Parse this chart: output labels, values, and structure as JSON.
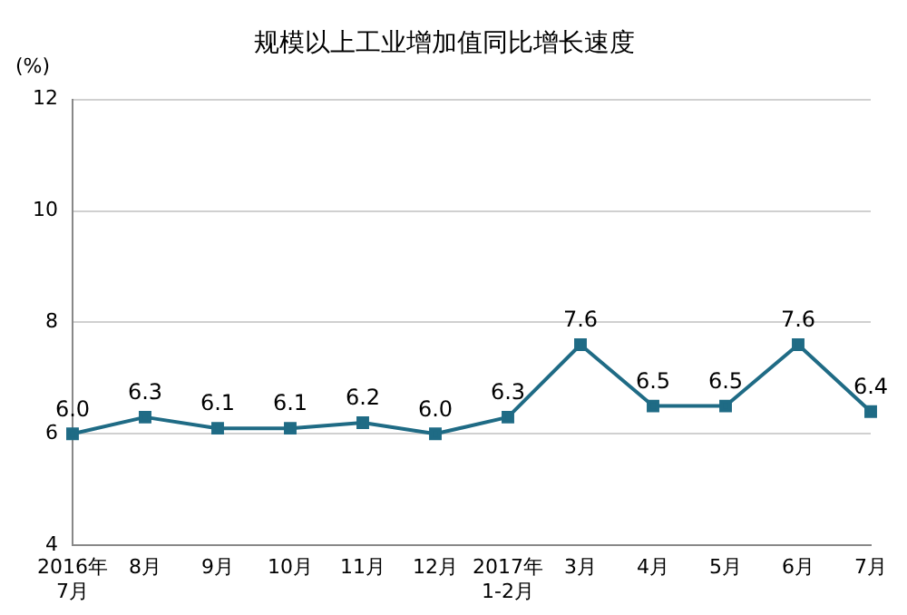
{
  "chart_data": {
    "type": "line",
    "title": "规模以上工业增加值同比增长速度",
    "ylabel": "(%)",
    "categories": [
      "2016年\n7月",
      "8月",
      "9月",
      "10月",
      "11月",
      "12月",
      "2017年\n1-2月",
      "3月",
      "4月",
      "5月",
      "6月",
      "7月"
    ],
    "values": [
      6.0,
      6.3,
      6.1,
      6.1,
      6.2,
      6.0,
      6.3,
      7.6,
      6.5,
      6.5,
      7.6,
      6.4
    ],
    "value_labels": [
      "6.0",
      "6.3",
      "6.1",
      "6.1",
      "6.2",
      "6.0",
      "6.3",
      "7.6",
      "6.5",
      "6.5",
      "7.6",
      "6.4"
    ],
    "color": "#1f6b85",
    "marker": "square",
    "line_style": "solid",
    "ylim": [
      4,
      12
    ],
    "yticks": [
      4,
      6,
      8,
      10,
      12
    ],
    "grid": "y",
    "legend": false
  }
}
